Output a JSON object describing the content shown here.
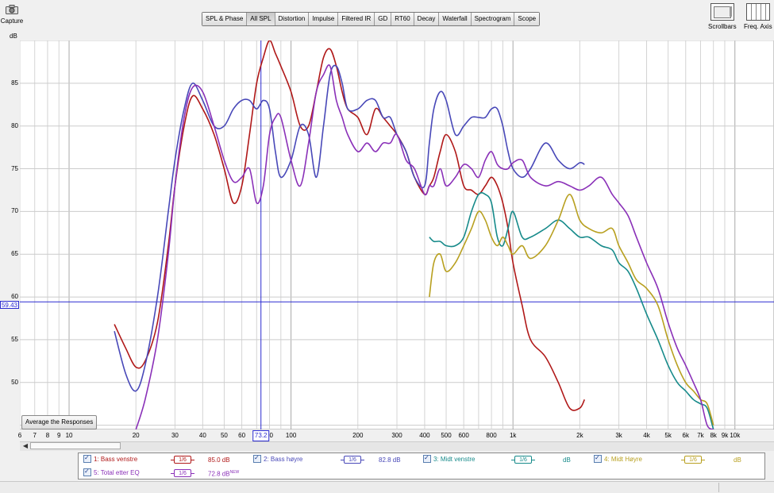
{
  "toolbar": {
    "capture_label": "Capture",
    "tabs": [
      {
        "label": "SPL & Phase",
        "active": false
      },
      {
        "label": "All SPL",
        "active": true
      },
      {
        "label": "Distortion",
        "active": false
      },
      {
        "label": "Impulse",
        "active": false
      },
      {
        "label": "Filtered IR",
        "active": false
      },
      {
        "label": "GD",
        "active": false
      },
      {
        "label": "RT60",
        "active": false
      },
      {
        "label": "Decay",
        "active": false
      },
      {
        "label": "Waterfall",
        "active": false
      },
      {
        "label": "Spectrogram",
        "active": false
      },
      {
        "label": "Scope",
        "active": false
      }
    ],
    "scrollbars_label": "Scrollbars",
    "freq_axis_label": "Freq. Axis"
  },
  "plot": {
    "y_unit": "dB",
    "average_button": "Average the Responses",
    "cursor_y_label": "59.43",
    "cursor_x_label": "73.2",
    "y_tick_labels": [
      "85",
      "80",
      "75",
      "70",
      "65",
      "60",
      "55",
      "50"
    ],
    "x_tick_labels": [
      "6",
      "7",
      "8",
      "9",
      "10",
      "20",
      "30",
      "40",
      "50",
      "60",
      "70",
      "80",
      "100",
      "200",
      "300",
      "400",
      "500",
      "600",
      "800",
      "1k",
      "2k",
      "3k",
      "4k",
      "5k",
      "6k",
      "7k",
      "8k",
      "9k",
      "10k"
    ]
  },
  "colors": {
    "grid": "#c8c8c8",
    "cursor": "#2a2ad0",
    "bass_venstre": "#b01818",
    "bass_hoyre": "#4848b8",
    "midt_venstre": "#168a8a",
    "midt_hoyre": "#b8a020",
    "total_etter_eq": "#8a30b8"
  },
  "legend": {
    "items": [
      {
        "label": "1: Bass venstre",
        "smoothing": "1/6",
        "db": "85.0 dB",
        "color": "#b01818"
      },
      {
        "label": "2: Bass høyre",
        "smoothing": "1/6",
        "db": "82.8 dB",
        "color": "#4848b8"
      },
      {
        "label": "3: Midt venstre",
        "smoothing": "1/6",
        "db": "dB",
        "color": "#168a8a"
      },
      {
        "label": "4: Midt Høyre",
        "smoothing": "1/6",
        "db": "dB",
        "color": "#b8a020"
      },
      {
        "label": "5: Total etter EQ",
        "smoothing": "1/6",
        "db": "72.8 dB",
        "badge": "NEW",
        "color": "#8a30b8"
      }
    ]
  },
  "chart_data": {
    "type": "line",
    "xscale": "log",
    "xlim": [
      6,
      15000
    ],
    "ylim": [
      44.5,
      90
    ],
    "ylabel": "dB",
    "cursor": {
      "x": 73.2,
      "y": 59.43
    },
    "series": [
      {
        "name": "1: Bass venstre",
        "color": "#b01818",
        "x": [
          16,
          18,
          20,
          22,
          25,
          28,
          30,
          33,
          36,
          40,
          45,
          50,
          55,
          60,
          65,
          70,
          75,
          80,
          85,
          90,
          100,
          110,
          120,
          130,
          140,
          150,
          160,
          170,
          180,
          200,
          220,
          240,
          260,
          280,
          300,
          330,
          360,
          400,
          420,
          440,
          470,
          500,
          550,
          600,
          650,
          700,
          750,
          800,
          850,
          900,
          950,
          1000,
          1100,
          1200,
          1400,
          1600,
          1800,
          2000,
          2100
        ],
        "y": [
          56.8,
          54,
          51.8,
          52.5,
          57,
          66,
          73,
          80,
          83.5,
          82,
          79,
          75,
          71,
          73,
          79,
          85,
          88,
          90,
          88.5,
          87,
          84,
          80,
          80,
          84,
          88,
          89,
          87,
          84,
          82,
          81,
          79,
          82,
          81,
          80,
          79,
          77,
          74,
          72,
          73,
          74,
          77,
          79,
          77,
          73,
          72.5,
          72,
          73,
          74,
          73,
          71,
          68,
          64,
          59,
          55,
          53,
          50,
          47,
          47,
          48
        ]
      },
      {
        "name": "2: Bass høyre",
        "color": "#4848b8",
        "x": [
          16,
          18,
          20,
          22,
          25,
          28,
          30,
          33,
          36,
          40,
          45,
          50,
          55,
          60,
          65,
          70,
          75,
          80,
          85,
          90,
          100,
          110,
          120,
          130,
          140,
          150,
          160,
          170,
          180,
          200,
          220,
          240,
          260,
          280,
          300,
          330,
          360,
          400,
          420,
          440,
          470,
          500,
          550,
          600,
          650,
          700,
          750,
          800,
          850,
          900,
          950,
          1000,
          1100,
          1200,
          1400,
          1600,
          1800,
          2000,
          2100
        ],
        "y": [
          56,
          51,
          49,
          52,
          60,
          70,
          76,
          82,
          85,
          83,
          80,
          80,
          82,
          83,
          83,
          82,
          83,
          82,
          77,
          74,
          76,
          80,
          79,
          74,
          80,
          86,
          87,
          85,
          82,
          82,
          83,
          83,
          81,
          81,
          79,
          77,
          74,
          73,
          78,
          82,
          84,
          83,
          79,
          80,
          81,
          81,
          81,
          82,
          82,
          80,
          77,
          75,
          74,
          75,
          78,
          76,
          75,
          75.7,
          75.5
        ]
      },
      {
        "name": "3: Midt venstre",
        "color": "#168a8a",
        "x": [
          420,
          440,
          470,
          500,
          550,
          600,
          650,
          700,
          750,
          800,
          850,
          900,
          950,
          1000,
          1100,
          1200,
          1400,
          1600,
          1800,
          2000,
          2200,
          2500,
          2800,
          3000,
          3300,
          3600,
          4000,
          4500,
          5000,
          5500,
          6000,
          6500,
          7000,
          7500,
          8000
        ],
        "y": [
          67,
          66.5,
          66.5,
          66,
          66,
          67,
          70,
          72,
          72,
          71,
          67,
          66,
          68,
          70,
          67,
          67,
          68,
          69,
          68,
          67,
          67,
          66,
          65.5,
          64,
          63,
          61,
          58,
          55,
          52,
          50,
          49,
          48,
          47.5,
          47,
          44.5
        ]
      },
      {
        "name": "4: Midt Høyre",
        "color": "#b8a020",
        "x": [
          420,
          440,
          470,
          500,
          550,
          600,
          650,
          700,
          750,
          800,
          850,
          900,
          950,
          1000,
          1100,
          1200,
          1400,
          1600,
          1800,
          2000,
          2200,
          2500,
          2800,
          3000,
          3300,
          3600,
          4000,
          4500,
          5000,
          5500,
          6000,
          6500,
          7000,
          7500,
          8000
        ],
        "y": [
          60,
          64,
          65,
          63,
          64,
          66,
          68,
          70,
          69,
          67,
          66,
          67,
          66,
          65,
          66,
          64.5,
          66,
          69,
          72,
          69,
          68,
          67.5,
          68,
          66,
          64,
          62,
          61,
          59,
          55,
          52,
          50,
          49,
          48,
          47.5,
          45
        ]
      },
      {
        "name": "5: Total etter EQ",
        "color": "#8a30b8",
        "x": [
          20,
          22,
          25,
          28,
          30,
          33,
          36,
          40,
          45,
          50,
          55,
          60,
          65,
          70,
          75,
          80,
          85,
          90,
          100,
          110,
          120,
          130,
          140,
          150,
          160,
          170,
          180,
          200,
          220,
          240,
          260,
          280,
          300,
          330,
          360,
          400,
          420,
          440,
          470,
          500,
          550,
          600,
          650,
          700,
          750,
          800,
          850,
          900,
          950,
          1000,
          1100,
          1200,
          1400,
          1600,
          1800,
          2000,
          2200,
          2500,
          2800,
          3000,
          3300,
          3600,
          4000,
          4500,
          5000,
          5500,
          6000,
          6500,
          7000,
          7500,
          8000
        ],
        "y": [
          44.5,
          48,
          55,
          65,
          73,
          81,
          84.5,
          84,
          80,
          76,
          73.5,
          74,
          75,
          71,
          73,
          79,
          81,
          81,
          76,
          73,
          78,
          84,
          86,
          87,
          83,
          81,
          79,
          77,
          78,
          77,
          78,
          78,
          79,
          76,
          75,
          72,
          73,
          73,
          75,
          73,
          74,
          75.5,
          75,
          74,
          76,
          77,
          75.5,
          75,
          75,
          75.7,
          76,
          74,
          73,
          73.5,
          73,
          72.5,
          73,
          74,
          72,
          71,
          69.5,
          67,
          64,
          61,
          57,
          54,
          52,
          50,
          48,
          45,
          44.5
        ]
      }
    ]
  },
  "status": {
    "text": ""
  }
}
